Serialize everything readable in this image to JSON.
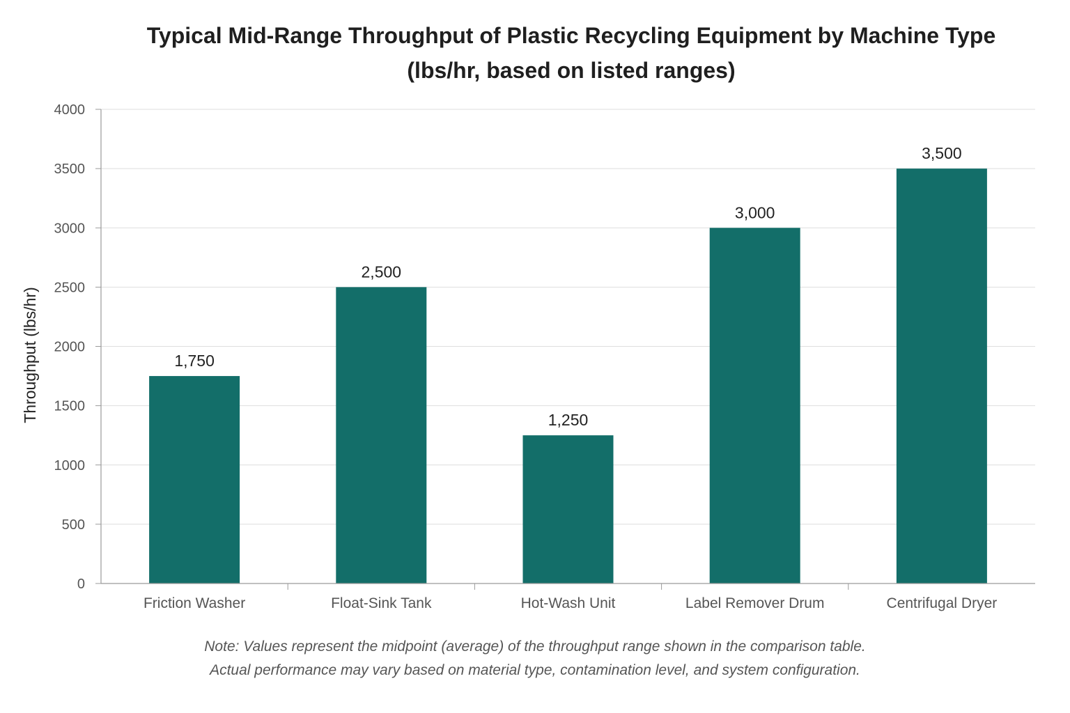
{
  "chart_data": {
    "type": "bar",
    "title": [
      "Typical Mid-Range Throughput of Plastic Recycling Equipment by Machine Type",
      "(lbs/hr, based on listed ranges)"
    ],
    "xlabel": "",
    "ylabel": "Throughput (lbs/hr)",
    "categories": [
      "Friction Washer",
      "Float-Sink Tank",
      "Hot-Wash Unit",
      "Label Remover Drum",
      "Centrifugal Dryer"
    ],
    "values": [
      1750,
      2500,
      1250,
      3000,
      3500
    ],
    "value_labels": [
      "1,750",
      "2,500",
      "1,250",
      "3,000",
      "3,500"
    ],
    "ylim": [
      0,
      4000
    ],
    "yticks": [
      0,
      500,
      1000,
      1500,
      2000,
      2500,
      3000,
      3500,
      4000
    ],
    "grid": true,
    "legend": "none",
    "bar_color": "#136e69",
    "note": [
      "Note: Values represent the midpoint (average) of the throughput range shown in the comparison table.",
      "Actual performance may vary based on material type, contamination level, and system configuration."
    ]
  }
}
